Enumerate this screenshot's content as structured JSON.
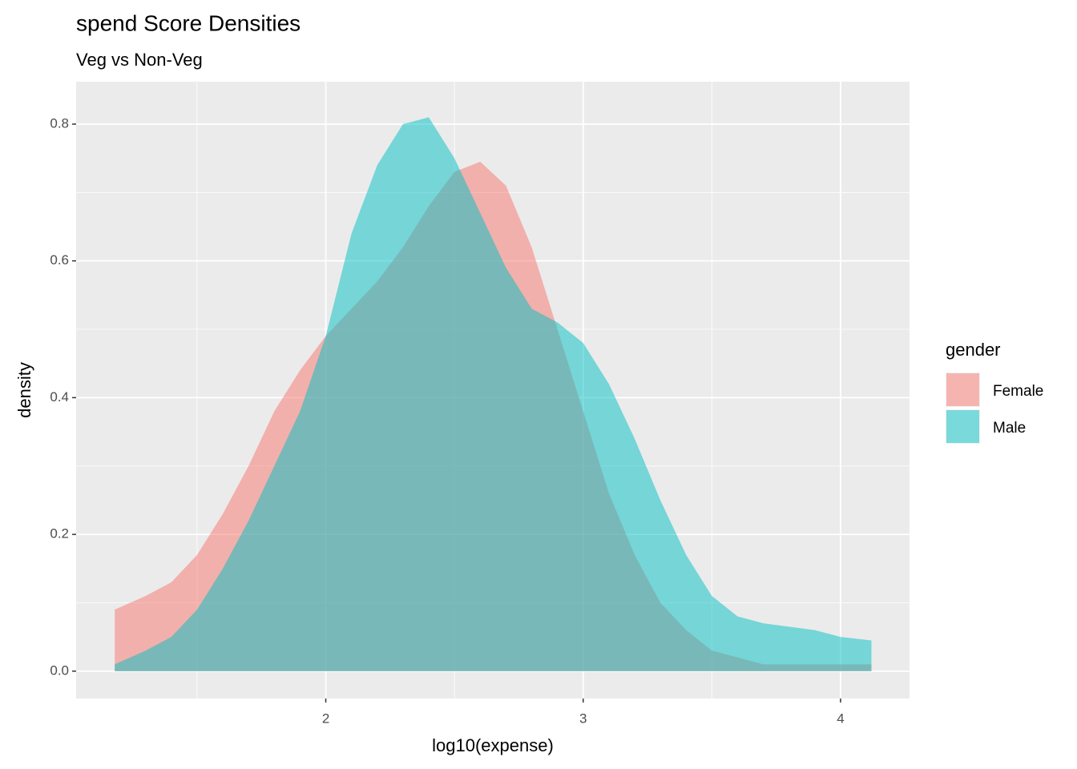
{
  "chart_data": {
    "type": "area",
    "title": "spend Score Densities",
    "subtitle": "Veg vs Non-Veg",
    "x_label": "log10(expense)",
    "y_label": "density",
    "legend_title": "gender",
    "legend_position": "right",
    "x": [
      1.18,
      1.3,
      1.4,
      1.5,
      1.6,
      1.7,
      1.8,
      1.9,
      2.0,
      2.1,
      2.2,
      2.3,
      2.4,
      2.5,
      2.6,
      2.7,
      2.8,
      2.9,
      3.0,
      3.1,
      3.2,
      3.3,
      3.4,
      3.5,
      3.6,
      3.7,
      3.8,
      3.9,
      4.0,
      4.12
    ],
    "series": [
      {
        "name": "Female",
        "color": "#F8766D",
        "opacity": 0.5,
        "values": [
          0.09,
          0.11,
          0.13,
          0.17,
          0.23,
          0.3,
          0.38,
          0.44,
          0.49,
          0.53,
          0.57,
          0.62,
          0.68,
          0.73,
          0.745,
          0.71,
          0.62,
          0.5,
          0.38,
          0.26,
          0.17,
          0.1,
          0.06,
          0.03,
          0.02,
          0.01,
          0.01,
          0.01,
          0.01,
          0.01
        ]
      },
      {
        "name": "Male",
        "color": "#00BFC4",
        "opacity": 0.5,
        "values": [
          0.01,
          0.03,
          0.05,
          0.09,
          0.15,
          0.22,
          0.3,
          0.38,
          0.49,
          0.64,
          0.74,
          0.8,
          0.81,
          0.75,
          0.67,
          0.59,
          0.53,
          0.51,
          0.48,
          0.42,
          0.34,
          0.25,
          0.17,
          0.11,
          0.08,
          0.07,
          0.065,
          0.06,
          0.05,
          0.045
        ]
      }
    ],
    "xlim": [
      1.03,
      4.268
    ],
    "ylim": [
      -0.04,
      0.862
    ],
    "xticks": [
      2,
      3,
      4
    ],
    "yticks": [
      {
        "value": 0,
        "label": "0.0"
      },
      0.2,
      0.4,
      0.6,
      0.8
    ],
    "x_minor_grid": [
      1.5,
      2.5,
      3.5
    ],
    "y_minor_grid": [
      0.1,
      0.3,
      0.5,
      0.7
    ],
    "grid": true
  }
}
